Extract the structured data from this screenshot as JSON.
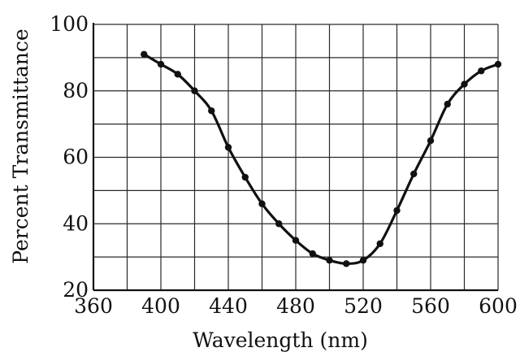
{
  "chart_data": {
    "type": "line",
    "title": "",
    "xlabel": "Wavelength (nm)",
    "ylabel": "Percent Transmittance",
    "xlim": [
      360,
      600
    ],
    "ylim": [
      20,
      100
    ],
    "x_ticks": [
      "360",
      "400",
      "440",
      "480",
      "520",
      "560",
      "600"
    ],
    "y_ticks": [
      "20",
      "40",
      "60",
      "80",
      "100"
    ],
    "grid": true,
    "legend": "none",
    "line_color": "#111111",
    "series": [
      {
        "x": [
          390,
          400,
          410,
          420,
          430,
          440,
          450,
          460,
          470,
          480,
          490,
          500,
          510,
          520,
          530,
          540,
          550,
          560,
          570,
          580,
          590,
          600
        ],
        "y": [
          91,
          88,
          85,
          80,
          74,
          63,
          54,
          46,
          40,
          35,
          31,
          29,
          28,
          29,
          34,
          44,
          55,
          65,
          76,
          82,
          86,
          88
        ]
      }
    ]
  }
}
